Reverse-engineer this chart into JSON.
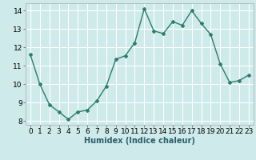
{
  "x": [
    0,
    1,
    2,
    3,
    4,
    5,
    6,
    7,
    8,
    9,
    10,
    11,
    12,
    13,
    14,
    15,
    16,
    17,
    18,
    19,
    20,
    21,
    22,
    23
  ],
  "y": [
    11.6,
    10.0,
    8.9,
    8.5,
    8.1,
    8.5,
    8.6,
    9.1,
    9.9,
    11.35,
    11.55,
    12.25,
    14.1,
    12.9,
    12.75,
    13.4,
    13.2,
    14.0,
    13.3,
    12.7,
    11.1,
    10.1,
    10.2,
    10.5
  ],
  "line_color": "#2e7d6e",
  "marker": "D",
  "marker_size": 2,
  "bg_color": "#ceeaea",
  "grid_color": "#ffffff",
  "xlabel": "Humidex (Indice chaleur)",
  "ylim": [
    7.8,
    14.4
  ],
  "xlim": [
    -0.5,
    23.5
  ],
  "yticks": [
    8,
    9,
    10,
    11,
    12,
    13,
    14
  ],
  "xticks": [
    0,
    1,
    2,
    3,
    4,
    5,
    6,
    7,
    8,
    9,
    10,
    11,
    12,
    13,
    14,
    15,
    16,
    17,
    18,
    19,
    20,
    21,
    22,
    23
  ],
  "xlabel_fontsize": 7,
  "tick_fontsize": 6.5,
  "line_width": 1.0
}
